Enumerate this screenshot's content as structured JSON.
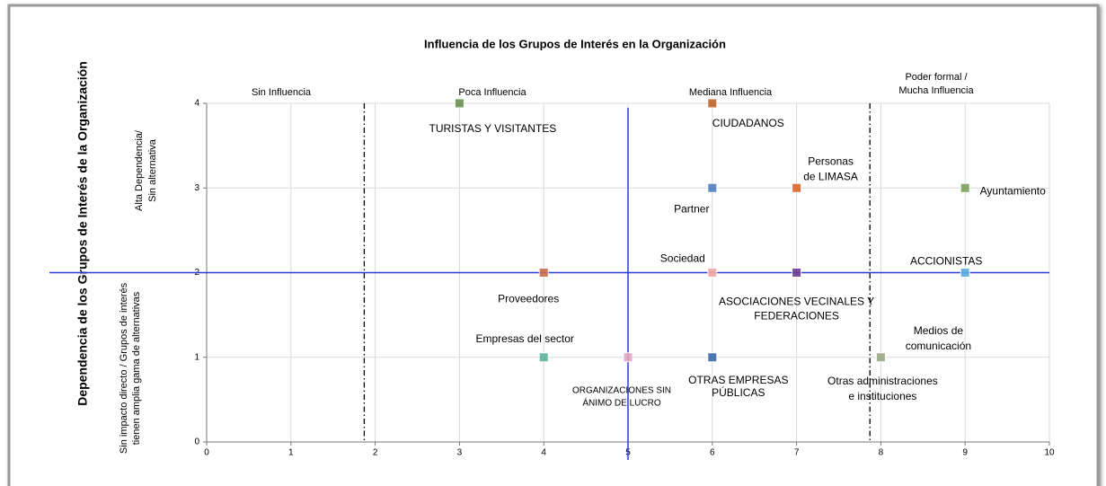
{
  "chart_data": {
    "type": "scatter",
    "title": "Influencia de los Grupos de Interés en la Organización",
    "y_title": "Dependencia de los Grupos de Interés de la Organización",
    "y_band_labels": [
      [
        "Alta Dependencia/",
        "Sin alternativa"
      ],
      [
        "Sin impacto directo / Grupos de interés",
        "tienen amplia gama de alternativas"
      ]
    ],
    "zone_labels": [
      [
        "Sin Influencia"
      ],
      [
        "Poca Influencia"
      ],
      [
        "Mediana Influencia"
      ],
      [
        "Poder formal /",
        "Mucha Influencia"
      ]
    ],
    "xlim": [
      0,
      10
    ],
    "ylim": [
      0,
      4
    ],
    "xticks": [
      0,
      1,
      2,
      3,
      4,
      5,
      6,
      7,
      8,
      9,
      10
    ],
    "yticks": [
      0,
      1,
      2,
      3,
      4
    ],
    "grid": true,
    "reference_lines": [
      {
        "axis": "x",
        "value": 1.87,
        "color": "#000000",
        "style": "dashdot"
      },
      {
        "axis": "x",
        "value": 7.87,
        "color": "#000000",
        "style": "dashdot"
      },
      {
        "axis": "x",
        "value": 5,
        "color": "#2b3bd6",
        "style": "solid"
      },
      {
        "axis": "y",
        "value": 2,
        "color": "#2b3bd6",
        "style": "solid"
      }
    ],
    "points": [
      {
        "label": [
          "TURISTAS  Y VISITANTES"
        ],
        "x": 3,
        "y": 4,
        "color": "#6b8f4e"
      },
      {
        "label": [
          "CIUDADANOS"
        ],
        "x": 6,
        "y": 4,
        "color": "#c0622a"
      },
      {
        "label": [
          "Partner"
        ],
        "x": 6,
        "y": 3,
        "color": "#4f7fbf"
      },
      {
        "label": [
          "Personas",
          "de LIMASA"
        ],
        "x": 7,
        "y": 3,
        "color": "#d9662b"
      },
      {
        "label": [
          "Ayuntamiento"
        ],
        "x": 9,
        "y": 3,
        "color": "#7aa35c"
      },
      {
        "label": [
          "Sociedad"
        ],
        "x": 6,
        "y": 2,
        "color": "#f2a7a0"
      },
      {
        "label": [
          "Proveedores"
        ],
        "x": 4,
        "y": 2,
        "color": "#c9704a"
      },
      {
        "label": [
          "ASOCIACIONES VECINALES Y",
          "FEDERACIONES"
        ],
        "x": 7,
        "y": 2,
        "color": "#6a3d8f"
      },
      {
        "label": [
          "ACCIONISTAS"
        ],
        "x": 9,
        "y": 2,
        "color": "#5aaee0"
      },
      {
        "label": [
          "Empresas del sector"
        ],
        "x": 4,
        "y": 1,
        "color": "#5fb39a"
      },
      {
        "label": [
          "ORGANIZACIONES  SIN",
          "ÁNIMO DE LUCRO"
        ],
        "x": 5,
        "y": 1,
        "color": "#e4a6c4"
      },
      {
        "label": [
          "OTRAS EMPRESAS",
          "PÚBLICAS"
        ],
        "x": 6,
        "y": 1,
        "color": "#3a6aa8"
      },
      {
        "label": [
          "Otras administraciones",
          "e instituciones"
        ],
        "x": 8,
        "y": 1,
        "color": "#9aab86"
      }
    ],
    "annotations": [
      [
        "Medios de",
        "comunicación"
      ]
    ]
  }
}
